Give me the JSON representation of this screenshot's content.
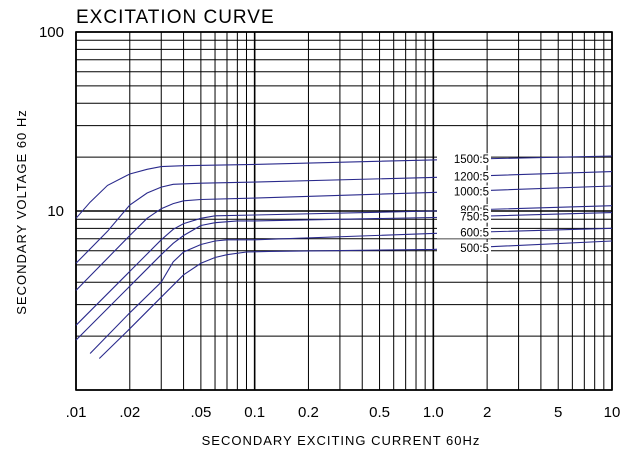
{
  "chart_data": {
    "type": "line",
    "title": "EXCITATION CURVE",
    "xlabel": "SECONDARY EXCITING CURRENT 60Hz",
    "ylabel": "SECONDARY VOLTAGE 60 Hz",
    "x_scale": "log",
    "y_scale": "log",
    "xlim": [
      0.01,
      10
    ],
    "ylim": [
      1,
      100
    ],
    "grid": true,
    "x_tick_labels": [
      {
        "value": 0.01,
        "label": ".01"
      },
      {
        "value": 0.02,
        "label": ".02"
      },
      {
        "value": 0.05,
        "label": ".05"
      },
      {
        "value": 0.1,
        "label": "0.1"
      },
      {
        "value": 0.2,
        "label": "0.2"
      },
      {
        "value": 0.5,
        "label": "0.5"
      },
      {
        "value": 1,
        "label": "1.0"
      },
      {
        "value": 2,
        "label": "2"
      },
      {
        "value": 5,
        "label": "5"
      },
      {
        "value": 10,
        "label": "10"
      }
    ],
    "y_tick_labels": [
      {
        "value": 10,
        "label": "10"
      },
      {
        "value": 100,
        "label": "100"
      }
    ],
    "series": [
      {
        "name": "1500:5",
        "color": "#2a2a8c",
        "points": [
          [
            0.01,
            9.1
          ],
          [
            0.012,
            11.2
          ],
          [
            0.015,
            13.9
          ],
          [
            0.02,
            16.1
          ],
          [
            0.025,
            17.1
          ],
          [
            0.03,
            17.7
          ],
          [
            0.04,
            17.9
          ],
          [
            0.1,
            18.2
          ],
          [
            1,
            19.3
          ],
          [
            10,
            20.3
          ]
        ]
      },
      {
        "name": "1200:5",
        "color": "#2a2a8c",
        "points": [
          [
            0.01,
            5.1
          ],
          [
            0.015,
            7.7
          ],
          [
            0.02,
            10.8
          ],
          [
            0.025,
            12.6
          ],
          [
            0.03,
            13.6
          ],
          [
            0.035,
            14.1
          ],
          [
            0.05,
            14.3
          ],
          [
            0.1,
            14.5
          ],
          [
            1,
            15.4
          ],
          [
            10,
            16.6
          ]
        ]
      },
      {
        "name": "1000:5",
        "color": "#2a2a8c",
        "points": [
          [
            0.01,
            3.6
          ],
          [
            0.02,
            7.3
          ],
          [
            0.025,
            9.1
          ],
          [
            0.03,
            10.3
          ],
          [
            0.035,
            11.0
          ],
          [
            0.04,
            11.4
          ],
          [
            0.05,
            11.6
          ],
          [
            0.1,
            11.8
          ],
          [
            1,
            12.7
          ],
          [
            10,
            13.8
          ]
        ]
      },
      {
        "name": "800:5",
        "color": "#2a2a8c",
        "points": [
          [
            0.01,
            2.3
          ],
          [
            0.02,
            4.6
          ],
          [
            0.03,
            6.9
          ],
          [
            0.035,
            7.9
          ],
          [
            0.04,
            8.5
          ],
          [
            0.05,
            9.1
          ],
          [
            0.06,
            9.4
          ],
          [
            0.1,
            9.5
          ],
          [
            1,
            10.0
          ],
          [
            10,
            10.7
          ]
        ]
      },
      {
        "name": "750:5",
        "color": "#2a2a8c",
        "points": [
          [
            0.01,
            1.9
          ],
          [
            0.02,
            3.8
          ],
          [
            0.03,
            5.7
          ],
          [
            0.035,
            6.6
          ],
          [
            0.04,
            7.3
          ],
          [
            0.05,
            8.3
          ],
          [
            0.06,
            8.6
          ],
          [
            0.08,
            8.8
          ],
          [
            0.1,
            8.8
          ],
          [
            1,
            9.2
          ],
          [
            10,
            9.8
          ]
        ]
      },
      {
        "name": "600:5",
        "color": "#2a2a8c",
        "points": [
          [
            0.012,
            1.6
          ],
          [
            0.02,
            2.7
          ],
          [
            0.03,
            4.0
          ],
          [
            0.035,
            5.2
          ],
          [
            0.04,
            5.9
          ],
          [
            0.05,
            6.5
          ],
          [
            0.06,
            6.8
          ],
          [
            0.07,
            6.9
          ],
          [
            0.1,
            6.9
          ],
          [
            1,
            7.5
          ],
          [
            10,
            8.0
          ]
        ]
      },
      {
        "name": "500:5",
        "color": "#2a2a8c",
        "points": [
          [
            0.0135,
            1.5
          ],
          [
            0.02,
            2.2
          ],
          [
            0.03,
            3.3
          ],
          [
            0.04,
            4.4
          ],
          [
            0.05,
            5.1
          ],
          [
            0.06,
            5.5
          ],
          [
            0.07,
            5.7
          ],
          [
            0.09,
            5.9
          ],
          [
            0.12,
            5.95
          ],
          [
            1,
            6.1
          ],
          [
            10,
            6.8
          ]
        ]
      }
    ]
  }
}
